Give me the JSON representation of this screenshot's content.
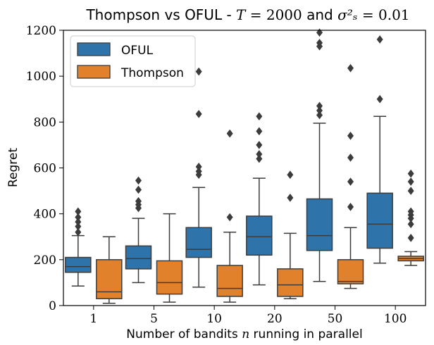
{
  "chart_data": {
    "type": "box",
    "title": "Thompson vs OFUL - T = 2000 and σ²ₛ = 0.01",
    "xlabel": "Number of bandits n running in parallel",
    "ylabel": "Regret",
    "ylim": [
      0,
      1200
    ],
    "yticks": [
      0,
      200,
      400,
      600,
      800,
      1000,
      1200
    ],
    "categories": [
      "1",
      "5",
      "10",
      "20",
      "50",
      "100"
    ],
    "legend_position": "top-left",
    "series": [
      {
        "name": "OFUL",
        "color": "#2e73aa",
        "boxes": [
          {
            "whisker_low": 85,
            "q1": 145,
            "median": 170,
            "q3": 210,
            "whisker_high": 305,
            "outliers": [
              320,
              345,
              365,
              385,
              410
            ]
          },
          {
            "whisker_low": 100,
            "q1": 160,
            "median": 205,
            "q3": 260,
            "whisker_high": 380,
            "outliers": [
              425,
              440,
              455,
              505,
              545
            ]
          },
          {
            "whisker_low": 80,
            "q1": 210,
            "median": 245,
            "q3": 340,
            "whisker_high": 515,
            "outliers": [
              570,
              585,
              605,
              835,
              1020
            ]
          },
          {
            "whisker_low": 90,
            "q1": 220,
            "median": 300,
            "q3": 390,
            "whisker_high": 555,
            "outliers": [
              640,
              660,
              700,
              760,
              825
            ]
          },
          {
            "whisker_low": 105,
            "q1": 240,
            "median": 305,
            "q3": 465,
            "whisker_high": 795,
            "outliers": [
              830,
              850,
              870,
              1130,
              1145,
              1190
            ]
          },
          {
            "whisker_low": 185,
            "q1": 250,
            "median": 355,
            "q3": 490,
            "whisker_high": 825,
            "outliers": [
              900,
              1160
            ]
          }
        ]
      },
      {
        "name": "Thompson",
        "color": "#e2812b",
        "boxes": [
          {
            "whisker_low": 10,
            "q1": 30,
            "median": 60,
            "q3": 200,
            "whisker_high": 300,
            "outliers": []
          },
          {
            "whisker_low": 15,
            "q1": 50,
            "median": 100,
            "q3": 195,
            "whisker_high": 400,
            "outliers": []
          },
          {
            "whisker_low": 15,
            "q1": 40,
            "median": 75,
            "q3": 175,
            "whisker_high": 320,
            "outliers": [
              385,
              750
            ]
          },
          {
            "whisker_low": 30,
            "q1": 40,
            "median": 90,
            "q3": 160,
            "whisker_high": 315,
            "outliers": [
              470,
              570
            ]
          },
          {
            "whisker_low": 75,
            "q1": 95,
            "median": 105,
            "q3": 200,
            "whisker_high": 340,
            "outliers": [
              430,
              540,
              645,
              740,
              1035
            ]
          },
          {
            "whisker_low": 175,
            "q1": 195,
            "median": 205,
            "q3": 215,
            "whisker_high": 235,
            "outliers": [
              295,
              355,
              380,
              395,
              410,
              500,
              540,
              575
            ]
          }
        ]
      }
    ]
  }
}
